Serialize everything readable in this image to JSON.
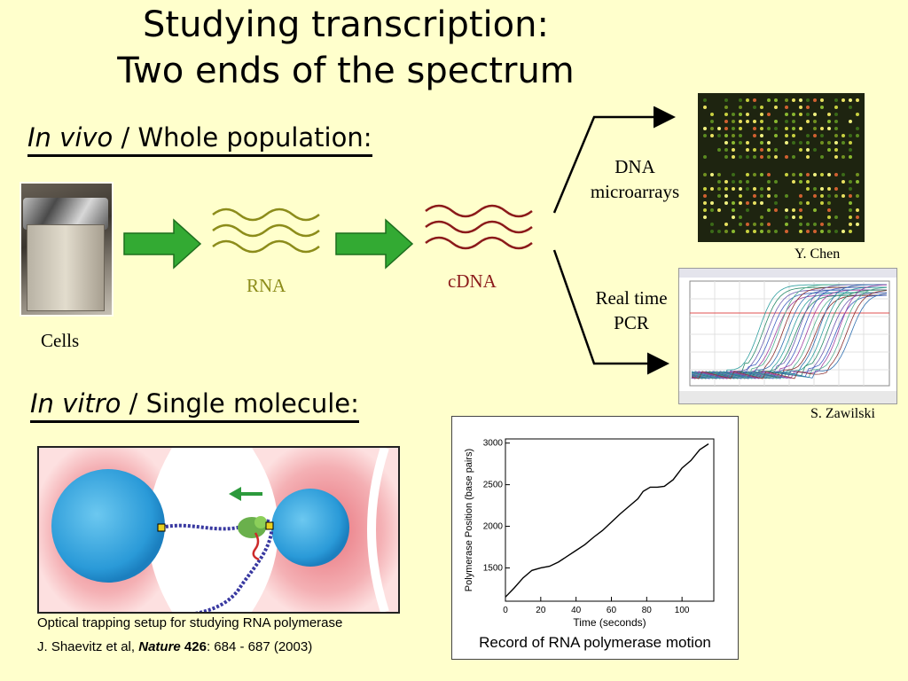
{
  "title": {
    "line1": "Studying transcription:",
    "line2": "Two ends of the spectrum"
  },
  "in_vivo": {
    "italic": "In vivo",
    "rest": " / Whole population:"
  },
  "in_vitro": {
    "italic": "In vitro",
    "rest": " / Single molecule:"
  },
  "labels": {
    "cells": "Cells",
    "rna": "RNA",
    "cdna": "cDNA",
    "dna_microarrays_1": "DNA",
    "dna_microarrays_2": "microarrays",
    "real_time_1": "Real time",
    "real_time_2": "PCR",
    "y_chen": "Y. Chen",
    "s_zawilski": "S. Zawilski"
  },
  "colors": {
    "background": "#ffffcc",
    "arrow_green": "#33aa33",
    "rna": "#8c8c1a",
    "cdna": "#8b1a1a"
  },
  "trap_caption": "Optical trapping setup for studying RNA polymerase",
  "citation": {
    "authors": "J. Shaevitz et al, ",
    "journal": "Nature",
    "volume": " 426",
    "pages": ": 684 - 687 (2003)"
  },
  "graph_caption": "Record of RNA polymerase motion",
  "chart_data": {
    "type": "line",
    "xlabel": "Time (seconds)",
    "ylabel": "Polymerase Position (base pairs)",
    "xlim": [
      0,
      118
    ],
    "ylim": [
      1100,
      3050
    ],
    "x_ticks": [
      0,
      20,
      40,
      60,
      80,
      100
    ],
    "y_ticks": [
      1500,
      2000,
      2500,
      3000
    ],
    "x": [
      0,
      5,
      10,
      15,
      20,
      25,
      30,
      35,
      40,
      45,
      50,
      55,
      60,
      65,
      70,
      75,
      78,
      82,
      86,
      90,
      95,
      100,
      105,
      110,
      115
    ],
    "values": [
      1150,
      1260,
      1380,
      1470,
      1500,
      1520,
      1570,
      1640,
      1710,
      1780,
      1870,
      1950,
      2050,
      2150,
      2240,
      2330,
      2420,
      2470,
      2470,
      2480,
      2560,
      2700,
      2790,
      2920,
      2990
    ]
  }
}
